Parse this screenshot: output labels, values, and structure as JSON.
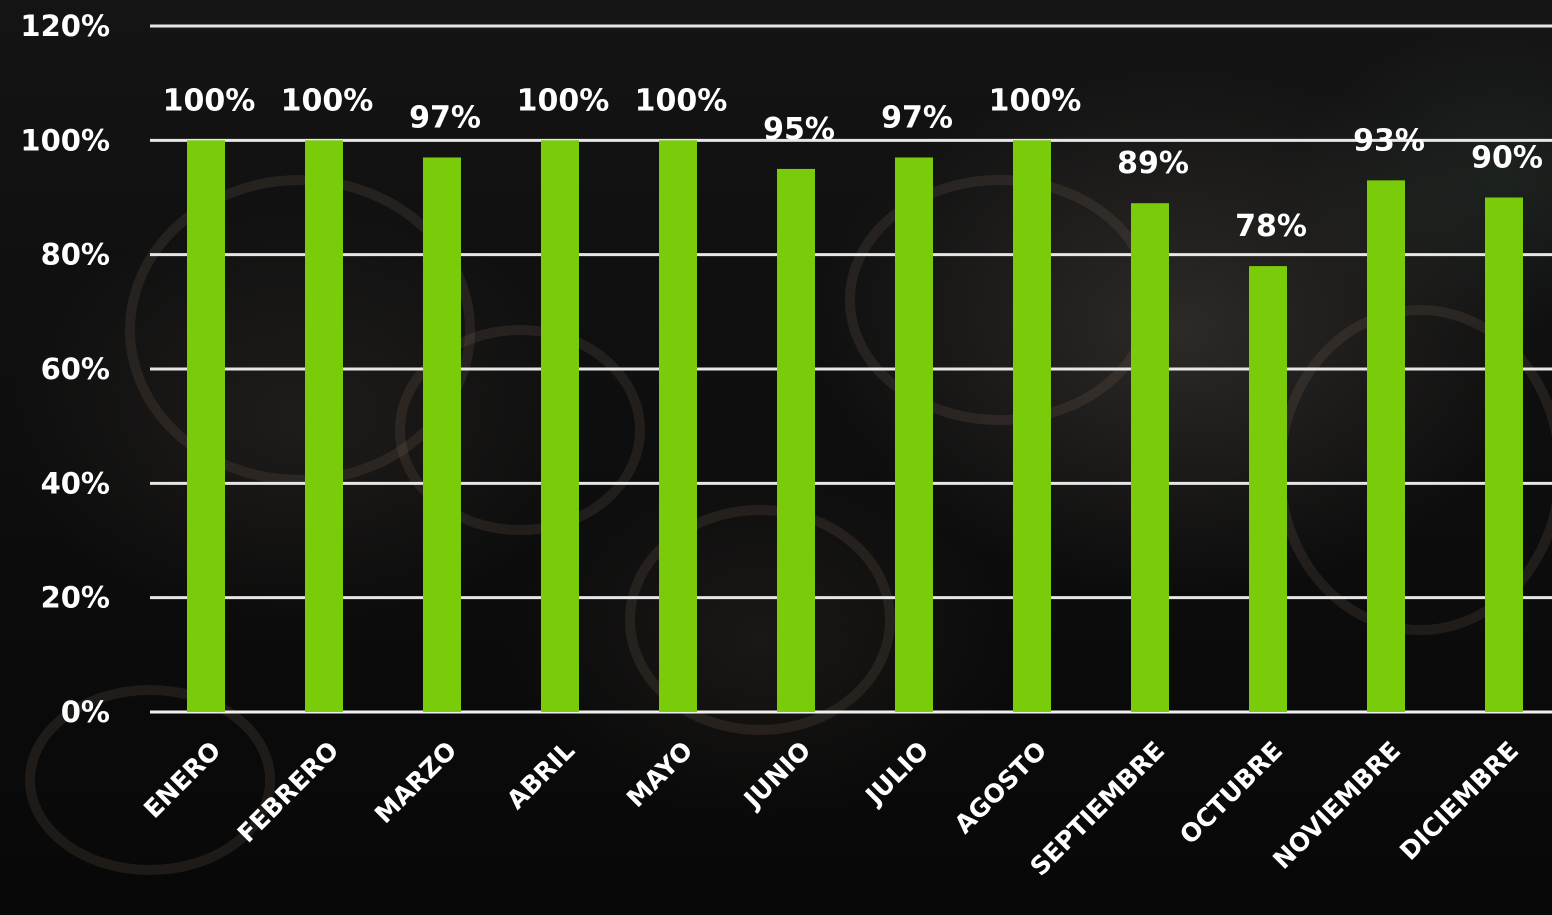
{
  "chart_data": {
    "type": "bar",
    "title": "",
    "xlabel": "",
    "ylabel": "",
    "categories": [
      "ENERO",
      "FEBRERO",
      "MARZO",
      "ABRIL",
      "MAYO",
      "JUNIO",
      "JULIO",
      "AGOSTO",
      "SEPTIEMBRE",
      "OCTUBRE",
      "NOVIEMBRE",
      "DICIEMBRE"
    ],
    "values": [
      100,
      100,
      97,
      100,
      100,
      95,
      97,
      100,
      89,
      78,
      93,
      90
    ],
    "data_labels": [
      "100%",
      "100%",
      "97%",
      "100%",
      "100%",
      "95%",
      "97%",
      "100%",
      "89%",
      "78%",
      "93%",
      "90%"
    ],
    "ylim": [
      0,
      120
    ],
    "y_ticks": [
      0,
      20,
      40,
      60,
      80,
      100,
      120
    ],
    "y_tick_labels": [
      "0%",
      "20%",
      "40%",
      "60%",
      "80%",
      "100%",
      "120%"
    ],
    "grid": true,
    "legend": "none",
    "colors": {
      "bar": "#7acc0a",
      "text": "#ffffff",
      "gridline": "#e6e6e6",
      "background": "#0b0b0b"
    }
  }
}
